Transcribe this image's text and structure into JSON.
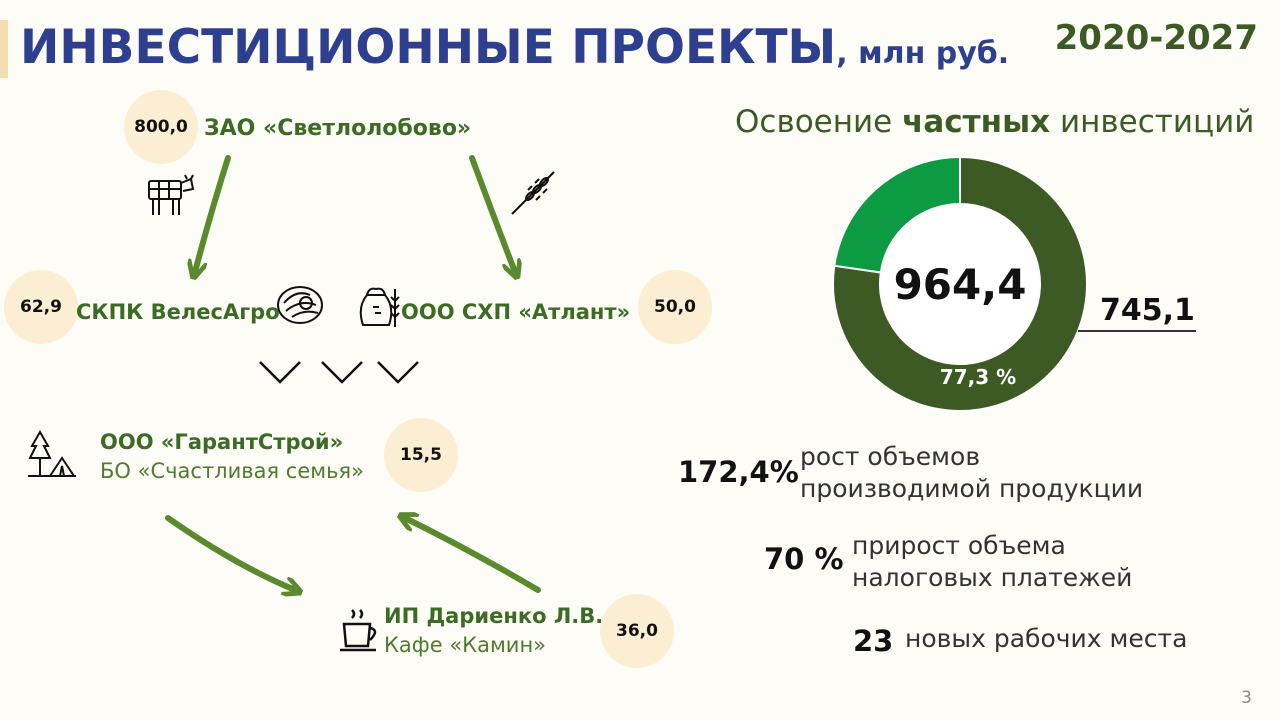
{
  "header": {
    "title": "ИНВЕСТИЦИОННЫЕ ПРОЕКТЫ",
    "unit": ", млн руб.",
    "period": "2020-2027"
  },
  "projects": {
    "svetlolobovo": {
      "value": "800,0",
      "name": "ЗАО «Светлолобово»"
    },
    "veles": {
      "value": "62,9",
      "name": "СКПК ВелесАгро"
    },
    "atlant": {
      "value": "50,0",
      "name": "ООО СХП «Атлант»"
    },
    "garant": {
      "value": "15,5",
      "name": "ООО «ГарантСтрой»",
      "sub": "БО «Счастливая семья»"
    },
    "darienko": {
      "value": "36,0",
      "name": "ИП Дариенко Л.В.",
      "sub": "Кафе «Камин»"
    }
  },
  "chart_data": {
    "type": "pie",
    "title_plain_start": "Освоение ",
    "title_bold": "частных",
    "title_plain_end": " инвестиций",
    "total": "964,4",
    "highlight_value": "745,1",
    "highlight_label": "77,3 %",
    "slices": [
      {
        "value": 77.3,
        "color": "#3d5a24"
      },
      {
        "value": 22.7,
        "color": "#0c9a43"
      }
    ]
  },
  "stats": [
    {
      "value": "172,4%",
      "line1": "рост объемов",
      "line2": "производимой продукции"
    },
    {
      "value": "70 %",
      "line1": "прирост объема",
      "line2": "налоговых платежей"
    },
    {
      "value": "23",
      "line1": "новых рабочих места"
    }
  ],
  "page": "3",
  "colors": {
    "arrow": "#5a8a2e",
    "title": "#2e3f8f",
    "bubble": "#fbeed3"
  },
  "icons": [
    "cow-icon",
    "wheat-icon",
    "bread-icon",
    "flour-sack-icon",
    "tent-camp-icon",
    "coffee-cup-icon",
    "chevron-down-icon"
  ]
}
